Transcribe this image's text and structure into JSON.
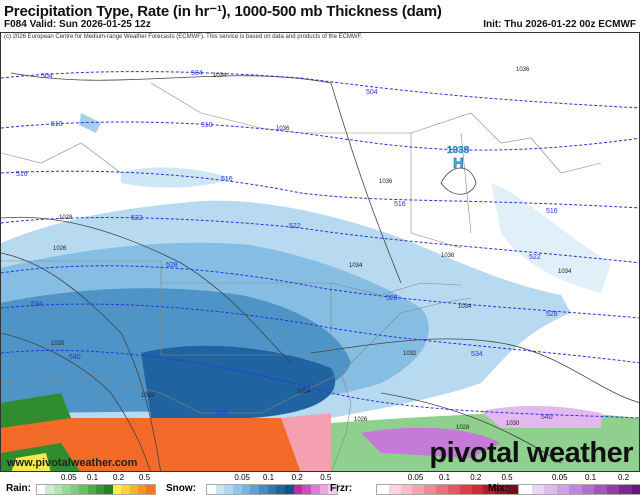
{
  "header": {
    "title": "Precipitation Type, Rate (in hr⁻¹), 1000-500 mb Thickness (dam)",
    "valid": "F084 Valid: Sun 2026-01-25 12z",
    "init": "Init: Thu 2026-01-22 00z ECMWF"
  },
  "map": {
    "copyright": "(c) 2026 European Centre for Medium-range Weather Forecasts (ECMWF). This service is based on data and products of the ECMWF.",
    "website": "www.pivotalweather.com",
    "logo": "pivotal weather",
    "high": {
      "symbol": "H",
      "value": "1038",
      "color": "#36b4e8"
    },
    "thickness_labels": [
      "504",
      "504",
      "510",
      "510",
      "516",
      "516",
      "516",
      "522",
      "522",
      "528",
      "528",
      "528",
      "534",
      "534",
      "540",
      "540",
      "540",
      "504",
      "516",
      "522"
    ],
    "pressure_labels": [
      "1034",
      "1036",
      "1036",
      "1036",
      "1028",
      "1026",
      "1034",
      "1036",
      "1034",
      "1034",
      "1020",
      "1018",
      "1032",
      "1024",
      "1030",
      "1026",
      "1028"
    ]
  },
  "legend": [
    {
      "name": "Rain:",
      "ticks": [
        "0.05",
        "0.1",
        "0.2",
        "0.5"
      ],
      "colors": [
        "#ffffff",
        "#cdeccb",
        "#b4e2b1",
        "#9bd597",
        "#82c87e",
        "#69bb66",
        "#4ea84c",
        "#379536",
        "#228222",
        "#ffef4a",
        "#fcd03b",
        "#fbb030",
        "#f89128",
        "#f57321"
      ]
    },
    {
      "name": "Snow:",
      "ticks": [
        "0.05",
        "0.1",
        "0.2",
        "0.5"
      ],
      "colors": [
        "#ffffff",
        "#c9e5f5",
        "#b0d7ef",
        "#93c6e6",
        "#78b3dc",
        "#5ea0d0",
        "#468cc2",
        "#3178b2",
        "#1f64a0",
        "#12508c",
        "#b72fa3",
        "#d14bbd",
        "#e07ad0",
        "#eba6e0",
        "#f3ccee"
      ]
    },
    {
      "name": "Frzr:",
      "ticks": [
        "0.05",
        "0.1",
        "0.2",
        "0.5"
      ],
      "colors": [
        "#ffffff",
        "#fbd4dc",
        "#f8bcc8",
        "#f5a3b2",
        "#f08a97",
        "#eb6f7c",
        "#e45661",
        "#dc3c48",
        "#cc2a36",
        "#b01e2a",
        "#901522",
        "#700e1a"
      ]
    },
    {
      "name": "Mix:",
      "ticks": [
        "0.05",
        "0.1",
        "0.2",
        "0.5"
      ],
      "colors": [
        "#ffffff",
        "#ecd4f3",
        "#ddbbeb",
        "#cfa2e2",
        "#c089d8",
        "#b16fcf",
        "#9f56c0",
        "#8c3eae",
        "#762a99",
        "#601a82",
        "#4a0e6a",
        "#370752"
      ]
    }
  ],
  "colors": {
    "thickness": "#2a33e0",
    "isobar": "#333333",
    "border": "#777777"
  }
}
